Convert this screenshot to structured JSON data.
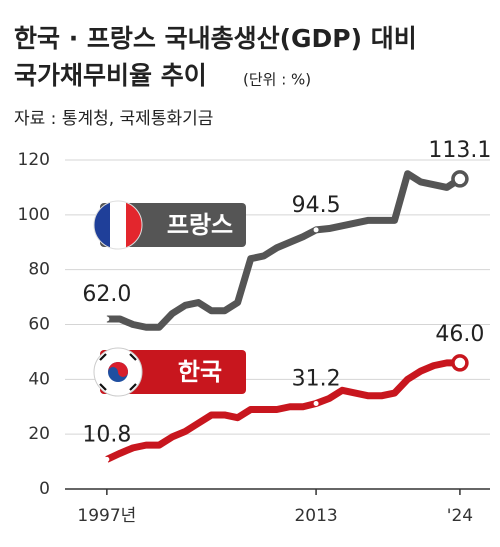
{
  "chart_data": {
    "type": "line",
    "title": "한국 · 프랑스 국내총생산(GDP) 대비",
    "title_line2": "국가채무비율 추이",
    "subtitle": "(단위 : %)",
    "source": "자료 : 통계청, 국제통화기금",
    "x": [
      1997,
      1998,
      1999,
      2000,
      2001,
      2002,
      2003,
      2004,
      2005,
      2006,
      2007,
      2008,
      2009,
      2010,
      2011,
      2012,
      2013,
      2014,
      2015,
      2016,
      2017,
      2018,
      2019,
      2020,
      2021,
      2022,
      2023,
      2024
    ],
    "xlim": [
      1993.8,
      2026.3
    ],
    "xticks": [
      {
        "value": 1997,
        "label": "1997년"
      },
      2013,
      {
        "value": 2024,
        "label": "'24"
      }
    ],
    "ylim": [
      0,
      120
    ],
    "yticks": [
      0,
      20,
      40,
      60,
      80,
      100,
      120
    ],
    "grid": true,
    "series": [
      {
        "name": "프랑스",
        "color": "#555555",
        "values": [
          62.0,
          62,
          60,
          59,
          59,
          64,
          67,
          68,
          65,
          65,
          68,
          84,
          85,
          88,
          90,
          92,
          94.5,
          95,
          96,
          97,
          98,
          98,
          98,
          115,
          112,
          111,
          110,
          113.1
        ],
        "value_labels": [
          "62.0",
          null,
          null,
          null,
          null,
          null,
          null,
          null,
          null,
          null,
          null,
          null,
          null,
          null,
          null,
          null,
          "94.5",
          null,
          null,
          null,
          null,
          null,
          null,
          null,
          null,
          null,
          null,
          "113.1"
        ]
      },
      {
        "name": "한국",
        "color": "#c8161e",
        "values": [
          10.8,
          13,
          15,
          16,
          16,
          19,
          21,
          24,
          27,
          27,
          26,
          29,
          29,
          29,
          30,
          30,
          31.2,
          33,
          36,
          35,
          34,
          34,
          35,
          40,
          43,
          45,
          46,
          46.0
        ],
        "value_labels": [
          "10.8",
          null,
          null,
          null,
          null,
          null,
          null,
          null,
          null,
          null,
          null,
          null,
          null,
          null,
          null,
          null,
          "31.2",
          null,
          null,
          null,
          null,
          null,
          null,
          null,
          null,
          null,
          null,
          "46.0"
        ]
      }
    ]
  }
}
